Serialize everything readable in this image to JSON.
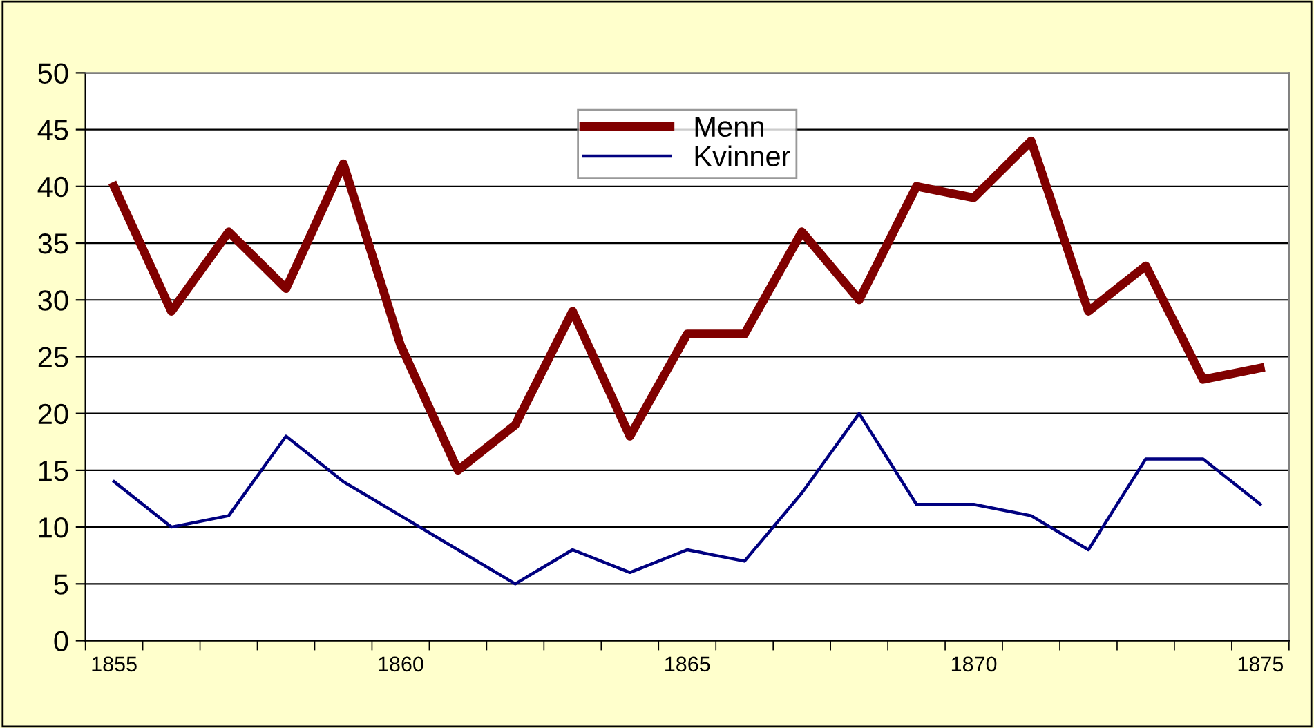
{
  "chart_data": {
    "type": "line",
    "categories": [
      "1855",
      null,
      null,
      null,
      null,
      "1860",
      null,
      null,
      null,
      null,
      "1865",
      null,
      null,
      null,
      null,
      "1870",
      null,
      null,
      null,
      null,
      "1875"
    ],
    "series": [
      {
        "name": "Menn",
        "color": "#800000",
        "values": [
          40,
          29,
          36,
          31,
          42,
          26,
          15,
          19,
          29,
          18,
          27,
          27,
          36,
          30,
          40,
          39,
          44,
          29,
          33,
          23,
          24
        ]
      },
      {
        "name": "Kvinner",
        "color": "#000080",
        "values": [
          14,
          10,
          11,
          18,
          14,
          11,
          8,
          5,
          8,
          6,
          8,
          7,
          13,
          20,
          12,
          12,
          11,
          8,
          16,
          16,
          12
        ]
      }
    ],
    "ylim": [
      0,
      50
    ],
    "yticks": [
      0,
      5,
      10,
      15,
      20,
      25,
      30,
      35,
      40,
      45,
      50
    ],
    "grid": "y",
    "legend": "top",
    "marker": "none",
    "line_style": "solid"
  }
}
